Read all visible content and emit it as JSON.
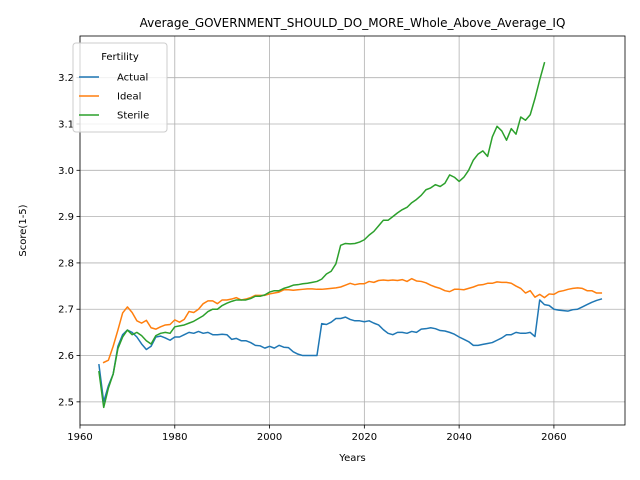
{
  "chart_data": {
    "type": "line",
    "title": "Average_GOVERNMENT_SHOULD_DO_MORE_Whole_Above_Average_IQ",
    "xlabel": "Years",
    "ylabel": "Score(1-5)",
    "xlim": [
      1960,
      2075
    ],
    "ylim": [
      2.45,
      3.29
    ],
    "xticks": [
      1960,
      1980,
      2000,
      2020,
      2040,
      2060
    ],
    "yticks": [
      2.5,
      2.6,
      2.7,
      2.8,
      2.9,
      3.0,
      3.1,
      3.2
    ],
    "grid": true,
    "legend": {
      "title": "Fertility",
      "placement": "upper-left"
    },
    "series": [
      {
        "name": "Actual",
        "color": "#1f77b4",
        "points": [
          [
            1964,
            2.58
          ],
          [
            1965,
            2.5
          ],
          [
            1966,
            2.535
          ],
          [
            1967,
            2.56
          ],
          [
            1968,
            2.62
          ],
          [
            1969,
            2.645
          ],
          [
            1970,
            2.655
          ],
          [
            1971,
            2.65
          ],
          [
            1972,
            2.64
          ],
          [
            1973,
            2.625
          ],
          [
            1974,
            2.613
          ],
          [
            1975,
            2.62
          ],
          [
            1976,
            2.64
          ],
          [
            1977,
            2.642
          ],
          [
            1978,
            2.638
          ],
          [
            1979,
            2.633
          ],
          [
            1980,
            2.64
          ],
          [
            1981,
            2.64
          ],
          [
            1982,
            2.645
          ],
          [
            1983,
            2.65
          ],
          [
            1984,
            2.648
          ],
          [
            1985,
            2.652
          ],
          [
            1986,
            2.648
          ],
          [
            1987,
            2.65
          ],
          [
            1988,
            2.645
          ],
          [
            1989,
            2.645
          ],
          [
            1990,
            2.646
          ],
          [
            1991,
            2.645
          ],
          [
            1992,
            2.635
          ],
          [
            1993,
            2.637
          ],
          [
            1994,
            2.632
          ],
          [
            1995,
            2.632
          ],
          [
            1996,
            2.628
          ],
          [
            1997,
            2.622
          ],
          [
            1998,
            2.621
          ],
          [
            1999,
            2.616
          ],
          [
            2000,
            2.62
          ],
          [
            2001,
            2.616
          ],
          [
            2002,
            2.622
          ],
          [
            2003,
            2.618
          ],
          [
            2004,
            2.617
          ],
          [
            2005,
            2.608
          ],
          [
            2006,
            2.603
          ],
          [
            2007,
            2.6
          ],
          [
            2008,
            2.6
          ],
          [
            2009,
            2.6
          ],
          [
            2010,
            2.6
          ],
          [
            2011,
            2.669
          ],
          [
            2012,
            2.667
          ],
          [
            2013,
            2.672
          ],
          [
            2014,
            2.68
          ],
          [
            2015,
            2.68
          ],
          [
            2016,
            2.683
          ],
          [
            2017,
            2.678
          ],
          [
            2018,
            2.675
          ],
          [
            2019,
            2.675
          ],
          [
            2020,
            2.673
          ],
          [
            2021,
            2.675
          ],
          [
            2022,
            2.67
          ],
          [
            2023,
            2.666
          ],
          [
            2024,
            2.656
          ],
          [
            2025,
            2.648
          ],
          [
            2026,
            2.645
          ],
          [
            2027,
            2.65
          ],
          [
            2028,
            2.65
          ],
          [
            2029,
            2.648
          ],
          [
            2030,
            2.652
          ],
          [
            2031,
            2.65
          ],
          [
            2032,
            2.657
          ],
          [
            2033,
            2.658
          ],
          [
            2034,
            2.66
          ],
          [
            2035,
            2.658
          ],
          [
            2036,
            2.654
          ],
          [
            2037,
            2.653
          ],
          [
            2038,
            2.65
          ],
          [
            2039,
            2.646
          ],
          [
            2040,
            2.64
          ],
          [
            2041,
            2.635
          ],
          [
            2042,
            2.63
          ],
          [
            2043,
            2.622
          ],
          [
            2044,
            2.622
          ],
          [
            2045,
            2.624
          ],
          [
            2046,
            2.626
          ],
          [
            2047,
            2.628
          ],
          [
            2048,
            2.633
          ],
          [
            2049,
            2.638
          ],
          [
            2050,
            2.645
          ],
          [
            2051,
            2.645
          ],
          [
            2052,
            2.65
          ],
          [
            2053,
            2.648
          ],
          [
            2054,
            2.648
          ],
          [
            2055,
            2.65
          ],
          [
            2056,
            2.641
          ],
          [
            2057,
            2.72
          ],
          [
            2058,
            2.71
          ],
          [
            2059,
            2.708
          ],
          [
            2060,
            2.7
          ],
          [
            2061,
            2.698
          ],
          [
            2062,
            2.697
          ],
          [
            2063,
            2.696
          ],
          [
            2064,
            2.699
          ],
          [
            2065,
            2.7
          ],
          [
            2066,
            2.705
          ],
          [
            2067,
            2.71
          ],
          [
            2068,
            2.715
          ],
          [
            2069,
            2.719
          ],
          [
            2070,
            2.722
          ]
        ]
      },
      {
        "name": "Ideal",
        "color": "#ff7f0e",
        "points": [
          [
            1965,
            2.585
          ],
          [
            1966,
            2.59
          ],
          [
            1967,
            2.62
          ],
          [
            1968,
            2.655
          ],
          [
            1969,
            2.692
          ],
          [
            1970,
            2.705
          ],
          [
            1971,
            2.693
          ],
          [
            1972,
            2.675
          ],
          [
            1973,
            2.67
          ],
          [
            1974,
            2.676
          ],
          [
            1975,
            2.66
          ],
          [
            1976,
            2.657
          ],
          [
            1977,
            2.662
          ],
          [
            1978,
            2.666
          ],
          [
            1979,
            2.667
          ],
          [
            1980,
            2.677
          ],
          [
            1981,
            2.672
          ],
          [
            1982,
            2.678
          ],
          [
            1983,
            2.695
          ],
          [
            1984,
            2.693
          ],
          [
            1985,
            2.7
          ],
          [
            1986,
            2.712
          ],
          [
            1987,
            2.718
          ],
          [
            1988,
            2.718
          ],
          [
            1989,
            2.712
          ],
          [
            1990,
            2.72
          ],
          [
            1991,
            2.72
          ],
          [
            1992,
            2.722
          ],
          [
            1993,
            2.725
          ],
          [
            1994,
            2.72
          ],
          [
            1995,
            2.722
          ],
          [
            1996,
            2.725
          ],
          [
            1997,
            2.73
          ],
          [
            1998,
            2.73
          ],
          [
            1999,
            2.73
          ],
          [
            2000,
            2.733
          ],
          [
            2001,
            2.735
          ],
          [
            2002,
            2.737
          ],
          [
            2003,
            2.742
          ],
          [
            2004,
            2.742
          ],
          [
            2005,
            2.741
          ],
          [
            2006,
            2.742
          ],
          [
            2007,
            2.743
          ],
          [
            2008,
            2.744
          ],
          [
            2009,
            2.744
          ],
          [
            2010,
            2.743
          ],
          [
            2011,
            2.743
          ],
          [
            2012,
            2.744
          ],
          [
            2013,
            2.745
          ],
          [
            2014,
            2.746
          ],
          [
            2015,
            2.748
          ],
          [
            2016,
            2.752
          ],
          [
            2017,
            2.756
          ],
          [
            2018,
            2.753
          ],
          [
            2019,
            2.755
          ],
          [
            2020,
            2.755
          ],
          [
            2021,
            2.76
          ],
          [
            2022,
            2.758
          ],
          [
            2023,
            2.762
          ],
          [
            2024,
            2.763
          ],
          [
            2025,
            2.762
          ],
          [
            2026,
            2.763
          ],
          [
            2027,
            2.762
          ],
          [
            2028,
            2.764
          ],
          [
            2029,
            2.76
          ],
          [
            2030,
            2.766
          ],
          [
            2031,
            2.761
          ],
          [
            2032,
            2.76
          ],
          [
            2033,
            2.757
          ],
          [
            2034,
            2.752
          ],
          [
            2035,
            2.748
          ],
          [
            2036,
            2.745
          ],
          [
            2037,
            2.74
          ],
          [
            2038,
            2.738
          ],
          [
            2039,
            2.743
          ],
          [
            2040,
            2.743
          ],
          [
            2041,
            2.742
          ],
          [
            2042,
            2.745
          ],
          [
            2043,
            2.748
          ],
          [
            2044,
            2.752
          ],
          [
            2045,
            2.753
          ],
          [
            2046,
            2.756
          ],
          [
            2047,
            2.756
          ],
          [
            2048,
            2.759
          ],
          [
            2049,
            2.758
          ],
          [
            2050,
            2.758
          ],
          [
            2051,
            2.756
          ],
          [
            2052,
            2.75
          ],
          [
            2053,
            2.745
          ],
          [
            2054,
            2.735
          ],
          [
            2055,
            2.74
          ],
          [
            2056,
            2.726
          ],
          [
            2057,
            2.732
          ],
          [
            2058,
            2.725
          ],
          [
            2059,
            2.733
          ],
          [
            2060,
            2.732
          ],
          [
            2061,
            2.738
          ],
          [
            2062,
            2.74
          ],
          [
            2063,
            2.743
          ],
          [
            2064,
            2.745
          ],
          [
            2065,
            2.746
          ],
          [
            2066,
            2.745
          ],
          [
            2067,
            2.74
          ],
          [
            2068,
            2.74
          ],
          [
            2069,
            2.735
          ],
          [
            2070,
            2.735
          ]
        ]
      },
      {
        "name": "Sterile",
        "color": "#2ca02c",
        "points": [
          [
            1964,
            2.565
          ],
          [
            1965,
            2.488
          ],
          [
            1966,
            2.53
          ],
          [
            1967,
            2.56
          ],
          [
            1968,
            2.615
          ],
          [
            1969,
            2.64
          ],
          [
            1970,
            2.655
          ],
          [
            1971,
            2.645
          ],
          [
            1972,
            2.65
          ],
          [
            1973,
            2.643
          ],
          [
            1974,
            2.632
          ],
          [
            1975,
            2.625
          ],
          [
            1976,
            2.643
          ],
          [
            1977,
            2.648
          ],
          [
            1978,
            2.65
          ],
          [
            1979,
            2.648
          ],
          [
            1980,
            2.662
          ],
          [
            1981,
            2.664
          ],
          [
            1982,
            2.666
          ],
          [
            1983,
            2.67
          ],
          [
            1984,
            2.674
          ],
          [
            1985,
            2.68
          ],
          [
            1986,
            2.686
          ],
          [
            1987,
            2.695
          ],
          [
            1988,
            2.7
          ],
          [
            1989,
            2.7
          ],
          [
            1990,
            2.708
          ],
          [
            1991,
            2.713
          ],
          [
            1992,
            2.717
          ],
          [
            1993,
            2.72
          ],
          [
            1994,
            2.72
          ],
          [
            1995,
            2.72
          ],
          [
            1996,
            2.723
          ],
          [
            1997,
            2.728
          ],
          [
            1998,
            2.728
          ],
          [
            1999,
            2.731
          ],
          [
            2000,
            2.737
          ],
          [
            2001,
            2.74
          ],
          [
            2002,
            2.74
          ],
          [
            2003,
            2.745
          ],
          [
            2004,
            2.748
          ],
          [
            2005,
            2.752
          ],
          [
            2006,
            2.753
          ],
          [
            2007,
            2.755
          ],
          [
            2008,
            2.756
          ],
          [
            2009,
            2.758
          ],
          [
            2010,
            2.76
          ],
          [
            2011,
            2.765
          ],
          [
            2012,
            2.776
          ],
          [
            2013,
            2.782
          ],
          [
            2014,
            2.798
          ],
          [
            2015,
            2.838
          ],
          [
            2016,
            2.842
          ],
          [
            2017,
            2.841
          ],
          [
            2018,
            2.842
          ],
          [
            2019,
            2.845
          ],
          [
            2020,
            2.85
          ],
          [
            2021,
            2.86
          ],
          [
            2022,
            2.868
          ],
          [
            2023,
            2.88
          ],
          [
            2024,
            2.892
          ],
          [
            2025,
            2.892
          ],
          [
            2026,
            2.9
          ],
          [
            2027,
            2.908
          ],
          [
            2028,
            2.915
          ],
          [
            2029,
            2.92
          ],
          [
            2030,
            2.93
          ],
          [
            2031,
            2.937
          ],
          [
            2032,
            2.946
          ],
          [
            2033,
            2.958
          ],
          [
            2034,
            2.962
          ],
          [
            2035,
            2.969
          ],
          [
            2036,
            2.965
          ],
          [
            2037,
            2.972
          ],
          [
            2038,
            2.99
          ],
          [
            2039,
            2.985
          ],
          [
            2040,
            2.976
          ],
          [
            2041,
            2.985
          ],
          [
            2042,
            3.0
          ],
          [
            2043,
            3.022
          ],
          [
            2044,
            3.035
          ],
          [
            2045,
            3.042
          ],
          [
            2046,
            3.03
          ],
          [
            2047,
            3.072
          ],
          [
            2048,
            3.095
          ],
          [
            2049,
            3.085
          ],
          [
            2050,
            3.065
          ],
          [
            2051,
            3.09
          ],
          [
            2052,
            3.078
          ],
          [
            2053,
            3.115
          ],
          [
            2054,
            3.108
          ],
          [
            2055,
            3.12
          ],
          [
            2056,
            3.155
          ],
          [
            2057,
            3.195
          ],
          [
            2058,
            3.232
          ]
        ]
      }
    ]
  }
}
